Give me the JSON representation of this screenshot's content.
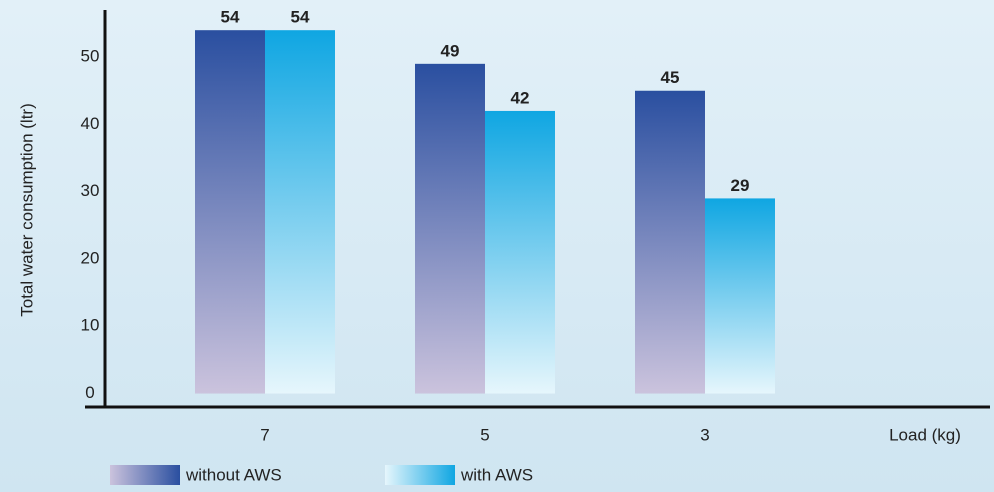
{
  "chart_data": {
    "type": "bar",
    "y_label": "Total water consumption (ltr)",
    "x_label": "Load (kg)",
    "categories": [
      "7",
      "5",
      "3"
    ],
    "series": [
      {
        "name": "without AWS",
        "color": "#2a4fa0",
        "values": [
          54,
          49,
          45
        ]
      },
      {
        "name": "with AWS",
        "color": "#0fa6e2",
        "values": [
          54,
          42,
          29
        ]
      }
    ],
    "ylim": [
      -2,
      57
    ],
    "yticks": [
      0,
      10,
      20,
      30,
      40,
      50
    ],
    "grid": false
  }
}
